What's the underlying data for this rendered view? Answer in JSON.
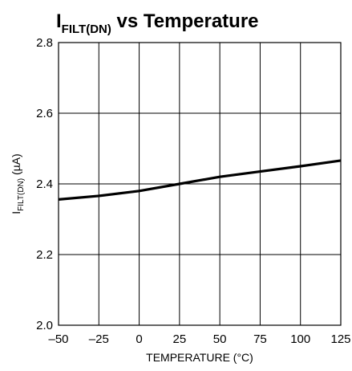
{
  "chart_data": {
    "type": "line",
    "title": {
      "main": "I",
      "subscript": "FILT(DN)",
      "suffix": " vs Temperature"
    },
    "xlabel": "TEMPERATURE (°C)",
    "ylabel": {
      "main": "I",
      "subscript": "FILT(DN)",
      "suffix": " (µA)"
    },
    "xlim": [
      -50,
      125
    ],
    "ylim": [
      2.0,
      2.8
    ],
    "x_ticks": [
      "–50",
      "–25",
      "0",
      "25",
      "50",
      "75",
      "100",
      "125"
    ],
    "y_ticks": [
      "2.8",
      "2.6",
      "2.4",
      "2.2",
      "2.0"
    ],
    "grid": true,
    "legend": "none",
    "series": [
      {
        "x": [
          -50,
          -25,
          0,
          25,
          50,
          75,
          100,
          125
        ],
        "y": [
          2.356,
          2.366,
          2.38,
          2.4,
          2.42,
          2.435,
          2.45,
          2.466
        ]
      }
    ]
  }
}
